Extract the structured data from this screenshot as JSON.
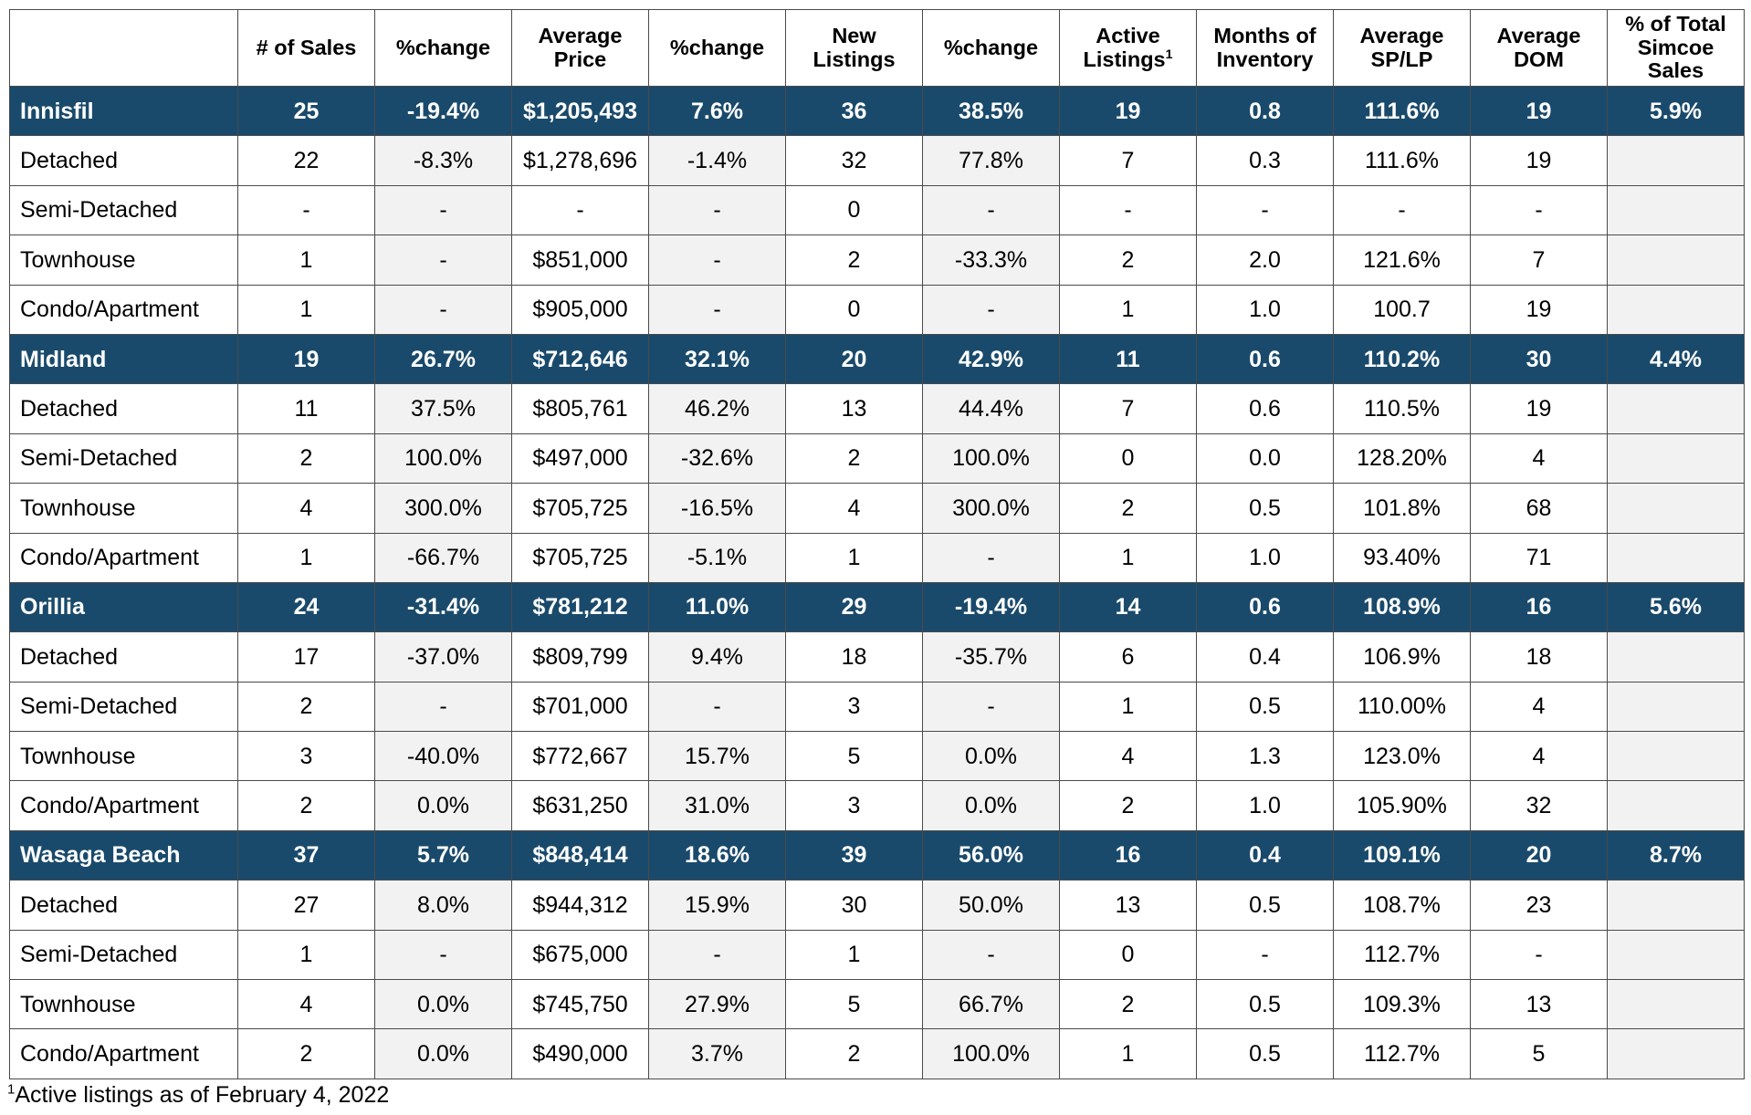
{
  "table": {
    "headers": [
      "",
      "# of Sales",
      "%change",
      "Average Price",
      "%change",
      "New Listings",
      "%change",
      "Active Listings",
      "Months of Inventory",
      "Average SP/LP",
      "Average DOM",
      "% of Total Simcoe Sales"
    ],
    "header_lines": [
      [
        ""
      ],
      [
        "# of Sales"
      ],
      [
        "%change"
      ],
      [
        "Average",
        "Price"
      ],
      [
        "%change"
      ],
      [
        "New",
        "Listings"
      ],
      [
        "%change"
      ],
      [
        "Active",
        "Listings"
      ],
      [
        "Months of",
        "Inventory"
      ],
      [
        "Average",
        "SP/LP"
      ],
      [
        "Average",
        "DOM"
      ],
      [
        "% of Total",
        "Simcoe",
        "Sales"
      ]
    ],
    "active_listings_footnote_marker": "1",
    "regions": [
      {
        "name": "Innisfil",
        "values": [
          "25",
          "-19.4%",
          "$1,205,493",
          "7.6%",
          "36",
          "38.5%",
          "19",
          "0.8",
          "111.6%",
          "19",
          "5.9%"
        ],
        "rows": [
          {
            "label": "Detached",
            "values": [
              "22",
              "-8.3%",
              "$1,278,696",
              "-1.4%",
              "32",
              "77.8%",
              "7",
              "0.3",
              "111.6%",
              "19",
              ""
            ]
          },
          {
            "label": "Semi-Detached",
            "values": [
              "-",
              "-",
              "-",
              "-",
              "0",
              "-",
              "-",
              "-",
              "-",
              "-",
              ""
            ]
          },
          {
            "label": "Townhouse",
            "values": [
              "1",
              "-",
              "$851,000",
              "-",
              "2",
              "-33.3%",
              "2",
              "2.0",
              "121.6%",
              "7",
              ""
            ]
          },
          {
            "label": "Condo/Apartment",
            "values": [
              "1",
              "-",
              "$905,000",
              "-",
              "0",
              "-",
              "1",
              "1.0",
              "100.7",
              "19",
              ""
            ]
          }
        ]
      },
      {
        "name": "Midland",
        "values": [
          "19",
          "26.7%",
          "$712,646",
          "32.1%",
          "20",
          "42.9%",
          "11",
          "0.6",
          "110.2%",
          "30",
          "4.4%"
        ],
        "rows": [
          {
            "label": "Detached",
            "values": [
              "11",
              "37.5%",
              "$805,761",
              "46.2%",
              "13",
              "44.4%",
              "7",
              "0.6",
              "110.5%",
              "19",
              ""
            ]
          },
          {
            "label": "Semi-Detached",
            "values": [
              "2",
              "100.0%",
              "$497,000",
              "-32.6%",
              "2",
              "100.0%",
              "0",
              "0.0",
              "128.20%",
              "4",
              ""
            ]
          },
          {
            "label": "Townhouse",
            "values": [
              "4",
              "300.0%",
              "$705,725",
              "-16.5%",
              "4",
              "300.0%",
              "2",
              "0.5",
              "101.8%",
              "68",
              ""
            ]
          },
          {
            "label": "Condo/Apartment",
            "values": [
              "1",
              "-66.7%",
              "$705,725",
              "-5.1%",
              "1",
              "-",
              "1",
              "1.0",
              "93.40%",
              "71",
              ""
            ]
          }
        ]
      },
      {
        "name": "Orillia",
        "values": [
          "24",
          "-31.4%",
          "$781,212",
          "11.0%",
          "29",
          "-19.4%",
          "14",
          "0.6",
          "108.9%",
          "16",
          "5.6%"
        ],
        "rows": [
          {
            "label": "Detached",
            "values": [
              "17",
              "-37.0%",
              "$809,799",
              "9.4%",
              "18",
              "-35.7%",
              "6",
              "0.4",
              "106.9%",
              "18",
              ""
            ]
          },
          {
            "label": "Semi-Detached",
            "values": [
              "2",
              "-",
              "$701,000",
              "-",
              "3",
              "-",
              "1",
              "0.5",
              "110.00%",
              "4",
              ""
            ]
          },
          {
            "label": "Townhouse",
            "values": [
              "3",
              "-40.0%",
              "$772,667",
              "15.7%",
              "5",
              "0.0%",
              "4",
              "1.3",
              "123.0%",
              "4",
              ""
            ]
          },
          {
            "label": "Condo/Apartment",
            "values": [
              "2",
              "0.0%",
              "$631,250",
              "31.0%",
              "3",
              "0.0%",
              "2",
              "1.0",
              "105.90%",
              "32",
              ""
            ]
          }
        ]
      },
      {
        "name": "Wasaga Beach",
        "values": [
          "37",
          "5.7%",
          "$848,414",
          "18.6%",
          "39",
          "56.0%",
          "16",
          "0.4",
          "109.1%",
          "20",
          "8.7%"
        ],
        "rows": [
          {
            "label": "Detached",
            "values": [
              "27",
              "8.0%",
              "$944,312",
              "15.9%",
              "30",
              "50.0%",
              "13",
              "0.5",
              "108.7%",
              "23",
              ""
            ]
          },
          {
            "label": "Semi-Detached",
            "values": [
              "1",
              "-",
              "$675,000",
              "-",
              "1",
              "-",
              "0",
              "-",
              "112.7%",
              "-",
              ""
            ]
          },
          {
            "label": "Townhouse",
            "values": [
              "4",
              "0.0%",
              "$745,750",
              "27.9%",
              "5",
              "66.7%",
              "2",
              "0.5",
              "109.3%",
              "13",
              ""
            ]
          },
          {
            "label": "Condo/Apartment",
            "values": [
              "2",
              "0.0%",
              "$490,000",
              "3.7%",
              "2",
              "100.0%",
              "1",
              "0.5",
              "112.7%",
              "5",
              ""
            ]
          }
        ]
      }
    ]
  },
  "footnote": {
    "marker": "1",
    "text": "Active listings as of February 4, 2022"
  },
  "colors": {
    "region_row_bg": "#1a4a6b",
    "region_row_text": "#ffffff",
    "shaded_column_bg": "#f2f2f2",
    "border": "#4a4a4a"
  }
}
